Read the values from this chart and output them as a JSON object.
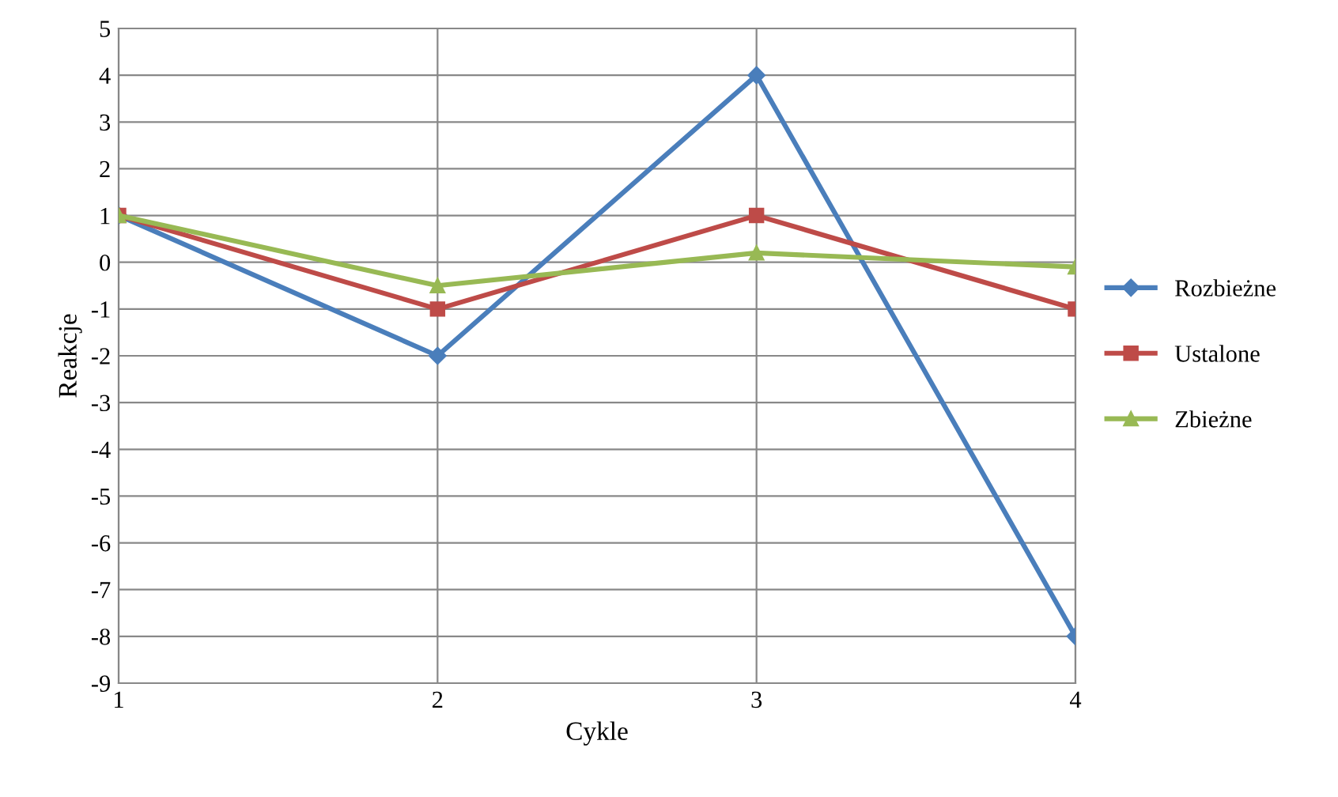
{
  "chart_data": {
    "type": "line",
    "xlabel": "Cykle",
    "ylabel": "Reakcje",
    "x": [
      1,
      2,
      3,
      4
    ],
    "series": [
      {
        "name": "Rozbieżne",
        "color": "#4a7ebb",
        "values": [
          1,
          -2,
          4,
          -8
        ],
        "marker": "diamond"
      },
      {
        "name": "Ustalone",
        "color": "#be4b48",
        "values": [
          1,
          -1,
          1,
          -1
        ],
        "marker": "square"
      },
      {
        "name": "Zbieżne",
        "color": "#98b954",
        "values": [
          1,
          -0.5,
          0.2,
          -0.1
        ],
        "marker": "triangle"
      }
    ],
    "xlim": [
      1,
      4
    ],
    "xticks": [
      1,
      2,
      3,
      4
    ],
    "ylim": [
      -9,
      5
    ],
    "yticks": [
      -9,
      -8,
      -7,
      -6,
      -5,
      -4,
      -3,
      -2,
      -1,
      0,
      1,
      2,
      3,
      4,
      5
    ],
    "grid": true,
    "legend": "right",
    "line_style": "solid"
  }
}
